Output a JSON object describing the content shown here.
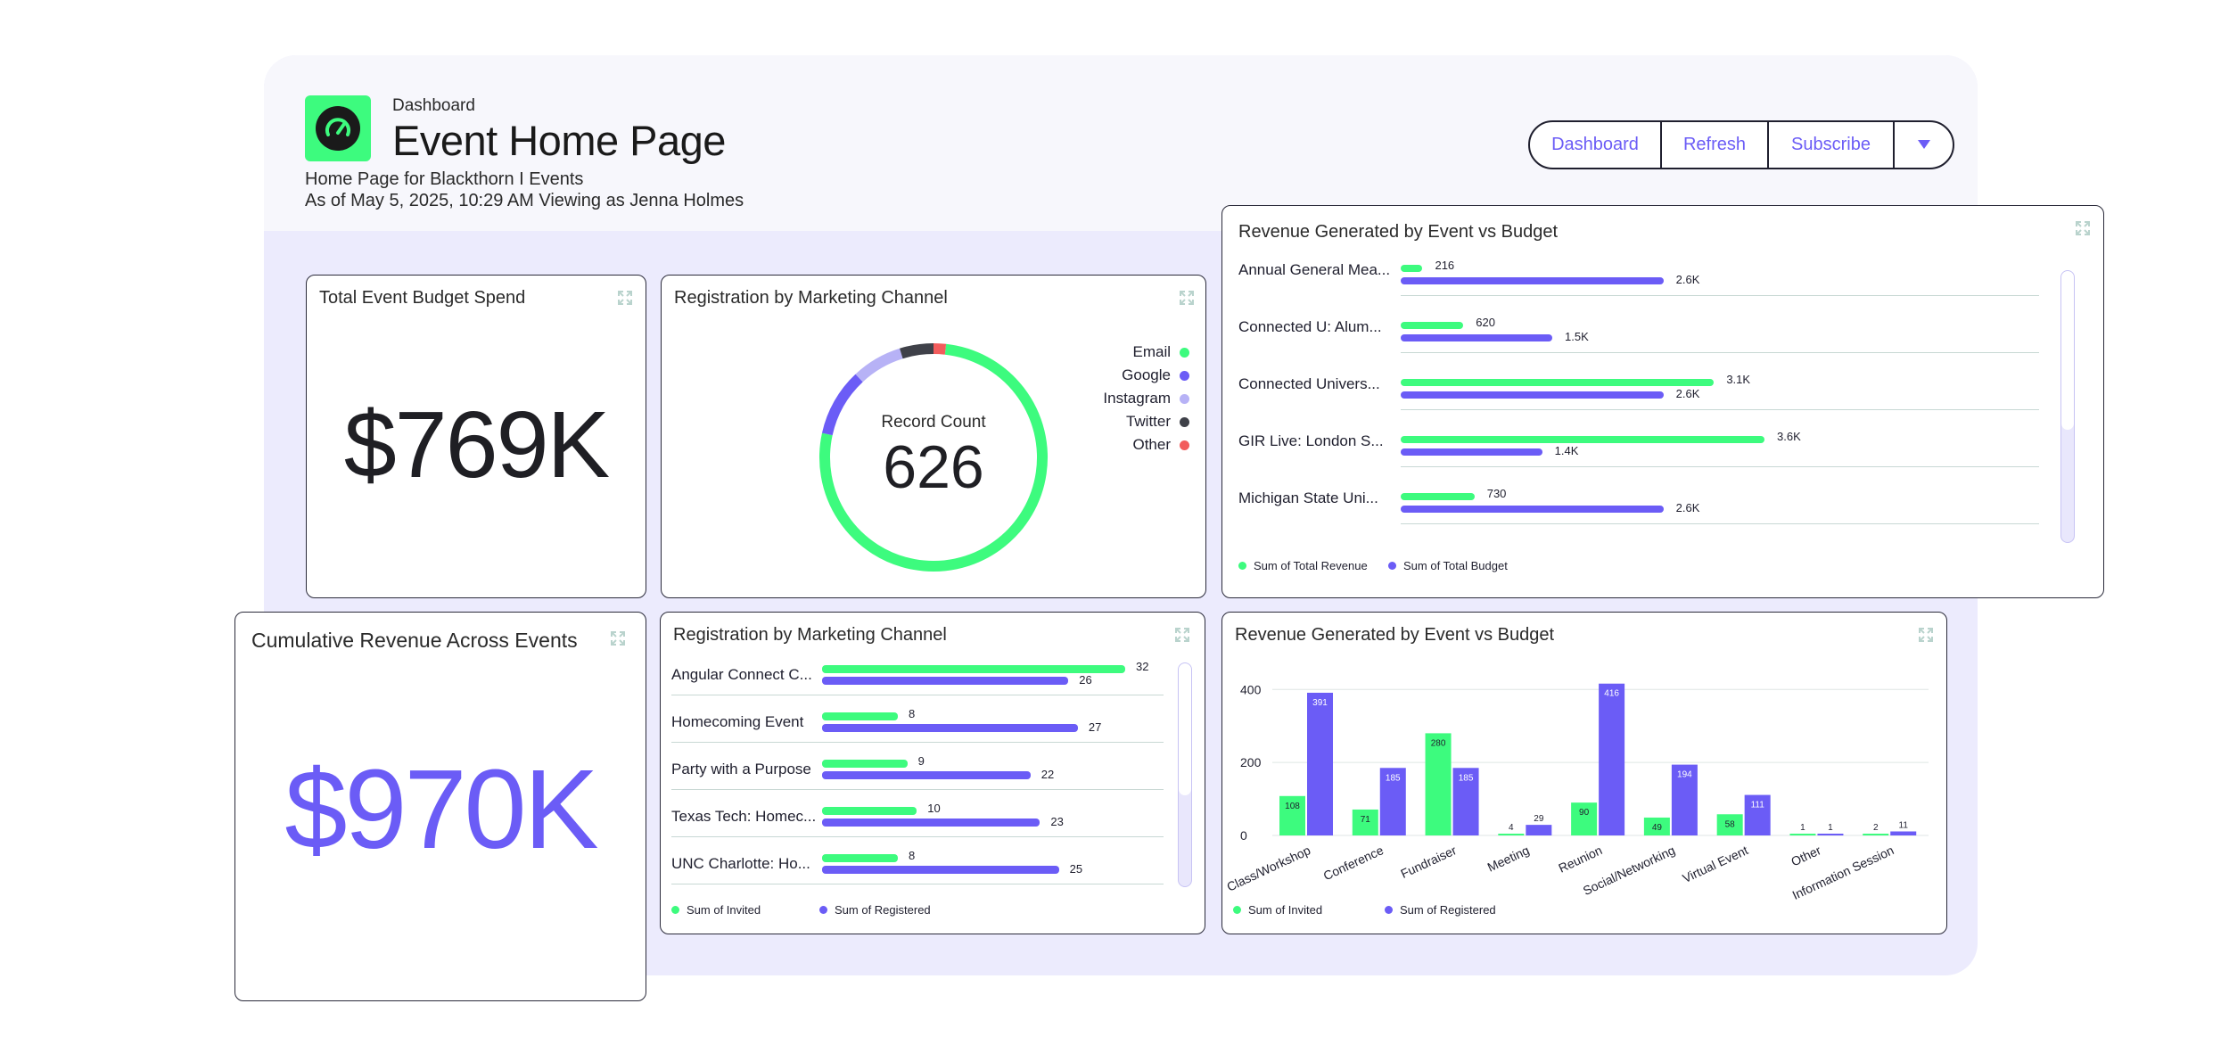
{
  "header": {
    "breadcrumb": "Dashboard",
    "title": "Event Home Page",
    "subtitle_line1": "Home Page for Blackthorn I Events",
    "subtitle_line2": "As of May 5, 2025, 10:29 AM Viewing as Jenna Holmes",
    "buttons": [
      {
        "label": "Dashboard"
      },
      {
        "label": "Refresh"
      },
      {
        "label": "Subscribe"
      }
    ],
    "dropdown_icon": "caret-down-icon"
  },
  "colors": {
    "green": "#3dfb7e",
    "purple": "#6b5cf6",
    "lavender": "#b7b2f6",
    "dark": "#3f4149",
    "red": "#f25c5c",
    "accent_text": "#6b5cf6"
  },
  "cards": {
    "budget_spend": {
      "title": "Total Event Budget Spend",
      "value": "$769K"
    },
    "cumulative_revenue": {
      "title": "Cumulative Revenue Across Events",
      "value": "$970K"
    },
    "donut": {
      "title": "Registration by Marketing Channel",
      "center_label": "Record Count",
      "center_value": "626",
      "legend": [
        "Email",
        "Google",
        "Instagram",
        "Twitter",
        "Other"
      ]
    },
    "revenue_top": {
      "title": "Revenue Generated by Event vs Budget",
      "legend": [
        "Sum of Total Revenue",
        "Sum of Total Budget"
      ]
    },
    "registration_bars": {
      "title": "Registration by Marketing Channel",
      "legend": [
        "Sum of Invited",
        "Sum of Registered"
      ]
    },
    "revenue_columns": {
      "title": "Revenue Generated by Event vs Budget",
      "legend": [
        "Sum of Invited",
        "Sum of Registered"
      ]
    }
  },
  "chart_data": [
    {
      "type": "pie",
      "categories": [
        "Email",
        "Google",
        "Instagram",
        "Twitter",
        "Other"
      ],
      "values": [
        480,
        60,
        45,
        30,
        11
      ],
      "colors": [
        "#3dfb7e",
        "#6b5cf6",
        "#b7b2f6",
        "#3f4149",
        "#f25c5c"
      ],
      "title": "Registration by Marketing Channel"
    },
    {
      "type": "bar",
      "title": "Revenue Generated by Event vs Budget",
      "categories": [
        "Annual General Mea...",
        "Connected U: Alum...",
        "Connected Univers...",
        "GIR Live: London S...",
        "Michigan State Uni..."
      ],
      "series": [
        {
          "name": "Sum of Total Revenue",
          "values": [
            216,
            620,
            3100,
            3600,
            730
          ],
          "labels": [
            "216",
            "620",
            "3.1K",
            "3.6K",
            "730"
          ]
        },
        {
          "name": "Sum of Total Budget",
          "values": [
            2600,
            1500,
            2600,
            1400,
            2600
          ],
          "labels": [
            "2.6K",
            "1.5K",
            "2.6K",
            "1.4K",
            "2.6K"
          ]
        }
      ],
      "xlim": [
        0,
        6000
      ]
    },
    {
      "type": "bar",
      "title": "Registration by Marketing Channel",
      "categories": [
        "Angular Connect C...",
        "Homecoming Event",
        "Party with a Purpose",
        "Texas Tech: Homec...",
        "UNC Charlotte: Ho..."
      ],
      "series": [
        {
          "name": "Sum of Invited",
          "values": [
            32,
            8,
            9,
            10,
            8
          ]
        },
        {
          "name": "Sum of Registered",
          "values": [
            26,
            27,
            22,
            23,
            25
          ]
        }
      ],
      "xlim": [
        0,
        32
      ]
    },
    {
      "type": "bar",
      "title": "Revenue Generated by Event vs Budget",
      "categories": [
        "Class/Workshop",
        "Conference",
        "Fundraiser",
        "Meeting",
        "Reunion",
        "Social/Networking",
        "Virtual Event",
        "Other",
        "Information Session"
      ],
      "series": [
        {
          "name": "Sum of Invited",
          "values": [
            108,
            71,
            280,
            4,
            90,
            49,
            58,
            1,
            2
          ]
        },
        {
          "name": "Sum of Registered",
          "values": [
            391,
            185,
            185,
            29,
            416,
            194,
            111,
            1,
            11
          ]
        }
      ],
      "yticks": [
        "400",
        "200",
        "0"
      ],
      "ylim": [
        0,
        430
      ]
    }
  ]
}
